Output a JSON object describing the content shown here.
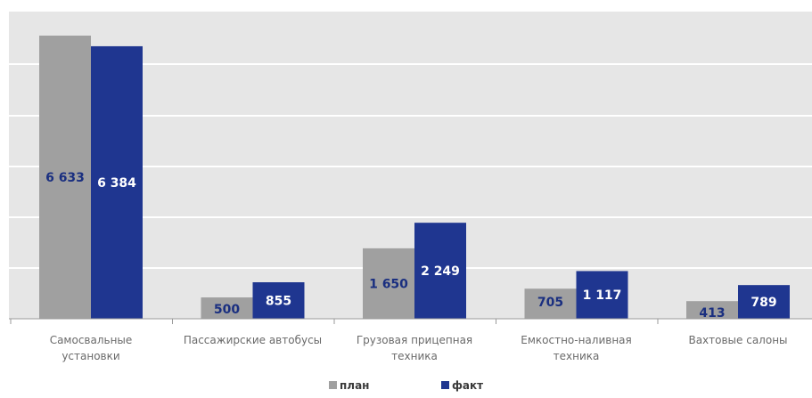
{
  "chart_data": {
    "type": "bar",
    "categories": [
      [
        "Самосвальные",
        "установки"
      ],
      [
        "Пассажирские автобусы"
      ],
      [
        "Грузовая прицепная",
        "техника"
      ],
      [
        "Емкостно-наливная",
        "техника"
      ],
      [
        "Вахтовые салоны"
      ]
    ],
    "series": [
      {
        "name": "план",
        "values": [
          6633,
          500,
          1650,
          705,
          413
        ],
        "labels": [
          "6 633",
          "500",
          "1 650",
          "705",
          "413"
        ],
        "color": "#a0a0a0",
        "label_color": "#1a2f80"
      },
      {
        "name": "факт",
        "values": [
          6384,
          855,
          2249,
          1117,
          789
        ],
        "labels": [
          "6 384",
          "855",
          "2 249",
          "1 117",
          "789"
        ],
        "color": "#1f3690",
        "label_color": "#ffffff"
      }
    ],
    "title": "",
    "xlabel": "",
    "ylabel": "",
    "y_axis_visible": false,
    "grid": true,
    "legend_position": "bottom",
    "colors": {
      "band": "#e6e6e6",
      "gridline": "#ffffff"
    }
  }
}
